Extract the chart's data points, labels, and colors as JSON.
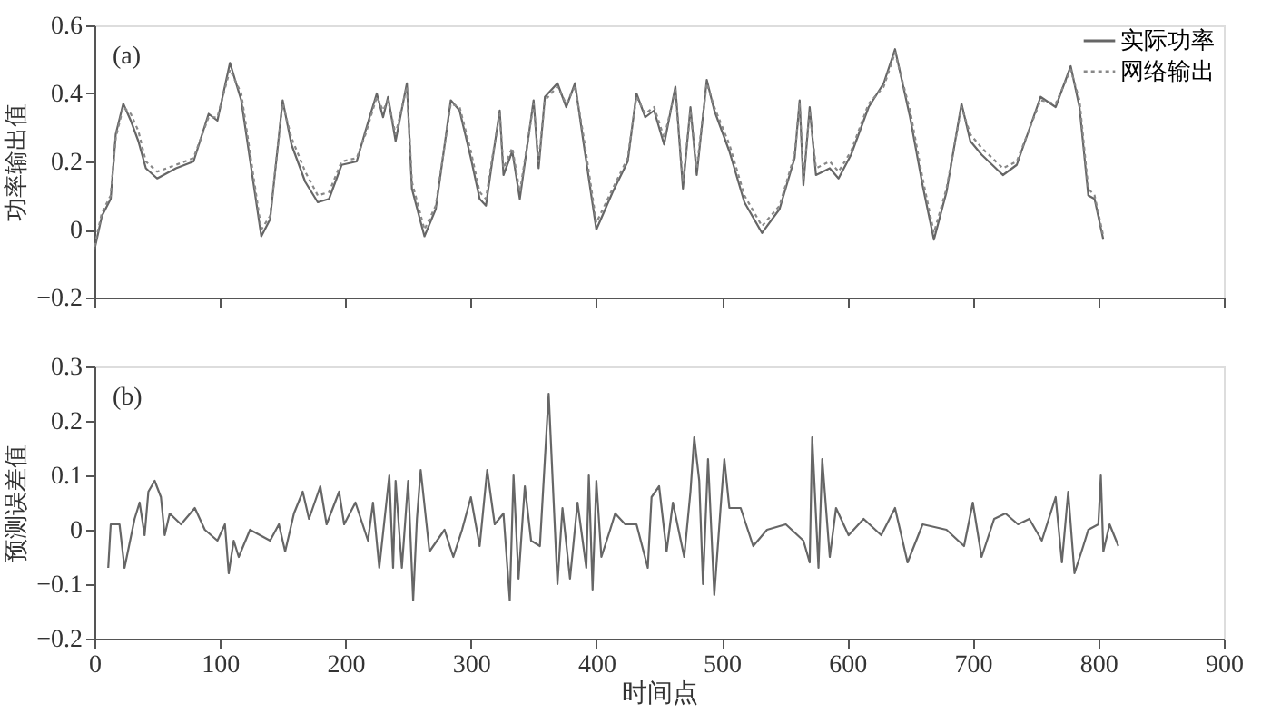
{
  "chart_data": [
    {
      "type": "line",
      "ylabel": "功率输出值",
      "xlim": [
        0,
        900
      ],
      "xticks": [
        0,
        100,
        200,
        300,
        400,
        500,
        600,
        700,
        800,
        900
      ],
      "ylim": [
        -0.2,
        0.6
      ],
      "yticks": [
        -0.2,
        0,
        0.2,
        0.4,
        0.6
      ],
      "tick_labels": "y",
      "grid": false,
      "legend": "top right",
      "annotations": [
        "(a)"
      ],
      "series": [
        {
          "name": "实际功率",
          "color": "#666666",
          "line_style": "solid",
          "x": [
            0,
            6,
            13,
            17,
            23,
            29,
            35,
            41,
            50,
            65,
            79,
            91,
            98,
            108,
            117,
            133,
            140,
            150,
            157,
            168,
            178,
            187,
            197,
            209,
            216,
            225,
            230,
            234,
            240,
            249,
            253,
            263,
            272,
            284,
            291,
            300,
            307,
            312,
            317,
            323,
            326,
            333,
            339,
            350,
            354,
            359,
            369,
            376,
            383,
            390,
            400,
            413,
            425,
            432,
            439,
            446,
            454,
            463,
            469,
            475,
            480,
            488,
            494,
            506,
            518,
            532,
            546,
            558,
            562,
            565,
            570,
            575,
            586,
            593,
            603,
            617,
            629,
            638,
            650,
            660,
            669,
            679,
            691,
            698,
            707,
            724,
            735,
            754,
            766,
            778,
            785,
            792,
            797,
            804
          ],
          "values": [
            -0.06,
            0.04,
            0.09,
            0.28,
            0.37,
            0.32,
            0.26,
            0.18,
            0.15,
            0.18,
            0.2,
            0.34,
            0.32,
            0.49,
            0.38,
            -0.02,
            0.03,
            0.38,
            0.25,
            0.14,
            0.08,
            0.09,
            0.19,
            0.2,
            0.29,
            0.4,
            0.33,
            0.39,
            0.26,
            0.43,
            0.12,
            -0.02,
            0.06,
            0.38,
            0.35,
            0.21,
            0.09,
            0.07,
            0.2,
            0.35,
            0.16,
            0.23,
            0.09,
            0.38,
            0.18,
            0.39,
            0.43,
            0.36,
            0.43,
            0.25,
            0.0,
            0.11,
            0.2,
            0.4,
            0.33,
            0.35,
            0.25,
            0.42,
            0.12,
            0.36,
            0.16,
            0.44,
            0.35,
            0.23,
            0.08,
            -0.01,
            0.06,
            0.21,
            0.38,
            0.13,
            0.36,
            0.16,
            0.18,
            0.15,
            0.22,
            0.36,
            0.43,
            0.53,
            0.33,
            0.13,
            -0.03,
            0.11,
            0.37,
            0.26,
            0.22,
            0.16,
            0.19,
            0.39,
            0.36,
            0.48,
            0.36,
            0.1,
            0.09,
            -0.03
          ]
        },
        {
          "name": "网络输出",
          "color": "#888888",
          "line_style": "dotted",
          "x": [
            0,
            6,
            13,
            17,
            23,
            29,
            35,
            41,
            50,
            65,
            79,
            91,
            98,
            108,
            117,
            133,
            140,
            150,
            157,
            168,
            178,
            187,
            197,
            209,
            216,
            225,
            230,
            234,
            240,
            249,
            253,
            263,
            272,
            284,
            291,
            300,
            307,
            312,
            317,
            323,
            326,
            333,
            339,
            350,
            354,
            359,
            369,
            376,
            383,
            390,
            400,
            413,
            425,
            432,
            439,
            446,
            454,
            463,
            469,
            475,
            480,
            488,
            494,
            506,
            518,
            532,
            546,
            558,
            562,
            565,
            570,
            575,
            586,
            593,
            603,
            617,
            629,
            638,
            650,
            660,
            669,
            679,
            691,
            698,
            707,
            724,
            735,
            754,
            766,
            778,
            785,
            792,
            797,
            804
          ],
          "values": [
            -0.05,
            0.05,
            0.1,
            0.27,
            0.36,
            0.34,
            0.29,
            0.2,
            0.17,
            0.19,
            0.21,
            0.33,
            0.33,
            0.47,
            0.4,
            0.0,
            0.04,
            0.37,
            0.27,
            0.17,
            0.1,
            0.11,
            0.2,
            0.21,
            0.28,
            0.39,
            0.35,
            0.38,
            0.28,
            0.42,
            0.14,
            0.0,
            0.07,
            0.37,
            0.36,
            0.23,
            0.11,
            0.09,
            0.21,
            0.34,
            0.18,
            0.24,
            0.11,
            0.37,
            0.2,
            0.38,
            0.42,
            0.37,
            0.42,
            0.27,
            0.02,
            0.12,
            0.21,
            0.39,
            0.34,
            0.36,
            0.27,
            0.41,
            0.14,
            0.35,
            0.18,
            0.43,
            0.36,
            0.25,
            0.1,
            0.01,
            0.07,
            0.22,
            0.37,
            0.15,
            0.35,
            0.18,
            0.2,
            0.17,
            0.23,
            0.37,
            0.42,
            0.52,
            0.35,
            0.15,
            -0.01,
            0.12,
            0.36,
            0.28,
            0.24,
            0.18,
            0.2,
            0.38,
            0.37,
            0.47,
            0.38,
            0.12,
            0.1,
            -0.02
          ]
        }
      ]
    },
    {
      "type": "line",
      "xlabel": "时间点",
      "ylabel": "预测误差值",
      "xlim": [
        0,
        900
      ],
      "xticks": [
        0,
        100,
        200,
        300,
        400,
        500,
        600,
        700,
        800,
        900
      ],
      "ylim": [
        -0.2,
        0.3
      ],
      "yticks": [
        -0.2,
        -0.1,
        0,
        0.1,
        0.2,
        0.3
      ],
      "grid": false,
      "annotations": [
        "(b)"
      ],
      "series": [
        {
          "color": "#666666",
          "line_style": "solid",
          "x": [
            11,
            13,
            20,
            24,
            32,
            36,
            40,
            43,
            48,
            53,
            56,
            60,
            69,
            80,
            88,
            98,
            104,
            107,
            111,
            115,
            124,
            140,
            147,
            152,
            159,
            166,
            171,
            180,
            185,
            195,
            199,
            208,
            218,
            222,
            227,
            235,
            238,
            240,
            245,
            250,
            254,
            257,
            260,
            267,
            279,
            286,
            293,
            300,
            307,
            313,
            319,
            326,
            331,
            334,
            338,
            343,
            348,
            355,
            362,
            366,
            369,
            373,
            379,
            385,
            392,
            394,
            397,
            400,
            404,
            411,
            415,
            423,
            432,
            441,
            444,
            450,
            456,
            461,
            470,
            475,
            478,
            482,
            485,
            489,
            494,
            499,
            502,
            506,
            515,
            525,
            536,
            551,
            565,
            570,
            572,
            577,
            580,
            586,
            591,
            601,
            613,
            627,
            638,
            648,
            660,
            679,
            693,
            700,
            707,
            717,
            726,
            736,
            745,
            755,
            766,
            771,
            776,
            781,
            788,
            792,
            800,
            802,
            804,
            809,
            816
          ],
          "values": [
            -0.07,
            0.01,
            0.01,
            -0.07,
            0.02,
            0.05,
            -0.01,
            0.07,
            0.09,
            0.06,
            -0.01,
            0.03,
            0.01,
            0.04,
            0.0,
            -0.02,
            0.01,
            -0.08,
            -0.02,
            -0.05,
            0.0,
            -0.02,
            0.01,
            -0.04,
            0.03,
            0.07,
            0.02,
            0.08,
            0.01,
            0.07,
            0.01,
            0.05,
            -0.02,
            0.05,
            -0.07,
            0.1,
            -0.07,
            0.09,
            -0.07,
            0.09,
            -0.13,
            0.02,
            0.11,
            -0.04,
            0.0,
            -0.05,
            0.0,
            0.06,
            -0.03,
            0.11,
            0.01,
            0.03,
            -0.13,
            0.1,
            -0.09,
            0.08,
            -0.02,
            -0.03,
            0.25,
            0.05,
            -0.1,
            0.04,
            -0.09,
            0.05,
            -0.07,
            0.1,
            -0.11,
            0.09,
            -0.05,
            0.0,
            0.03,
            0.01,
            0.01,
            -0.07,
            0.06,
            0.08,
            -0.04,
            0.05,
            -0.05,
            0.07,
            0.17,
            0.09,
            -0.1,
            0.13,
            -0.12,
            0.04,
            0.13,
            0.04,
            0.04,
            -0.03,
            0.0,
            0.01,
            -0.02,
            -0.06,
            0.17,
            -0.07,
            0.13,
            -0.05,
            0.04,
            -0.01,
            0.02,
            -0.01,
            0.04,
            -0.06,
            0.01,
            0.0,
            -0.03,
            0.05,
            -0.05,
            0.02,
            0.03,
            0.01,
            0.02,
            -0.02,
            0.06,
            -0.06,
            0.07,
            -0.08,
            -0.03,
            0.0,
            0.01,
            0.1,
            -0.04,
            0.01,
            -0.03
          ]
        }
      ]
    }
  ]
}
